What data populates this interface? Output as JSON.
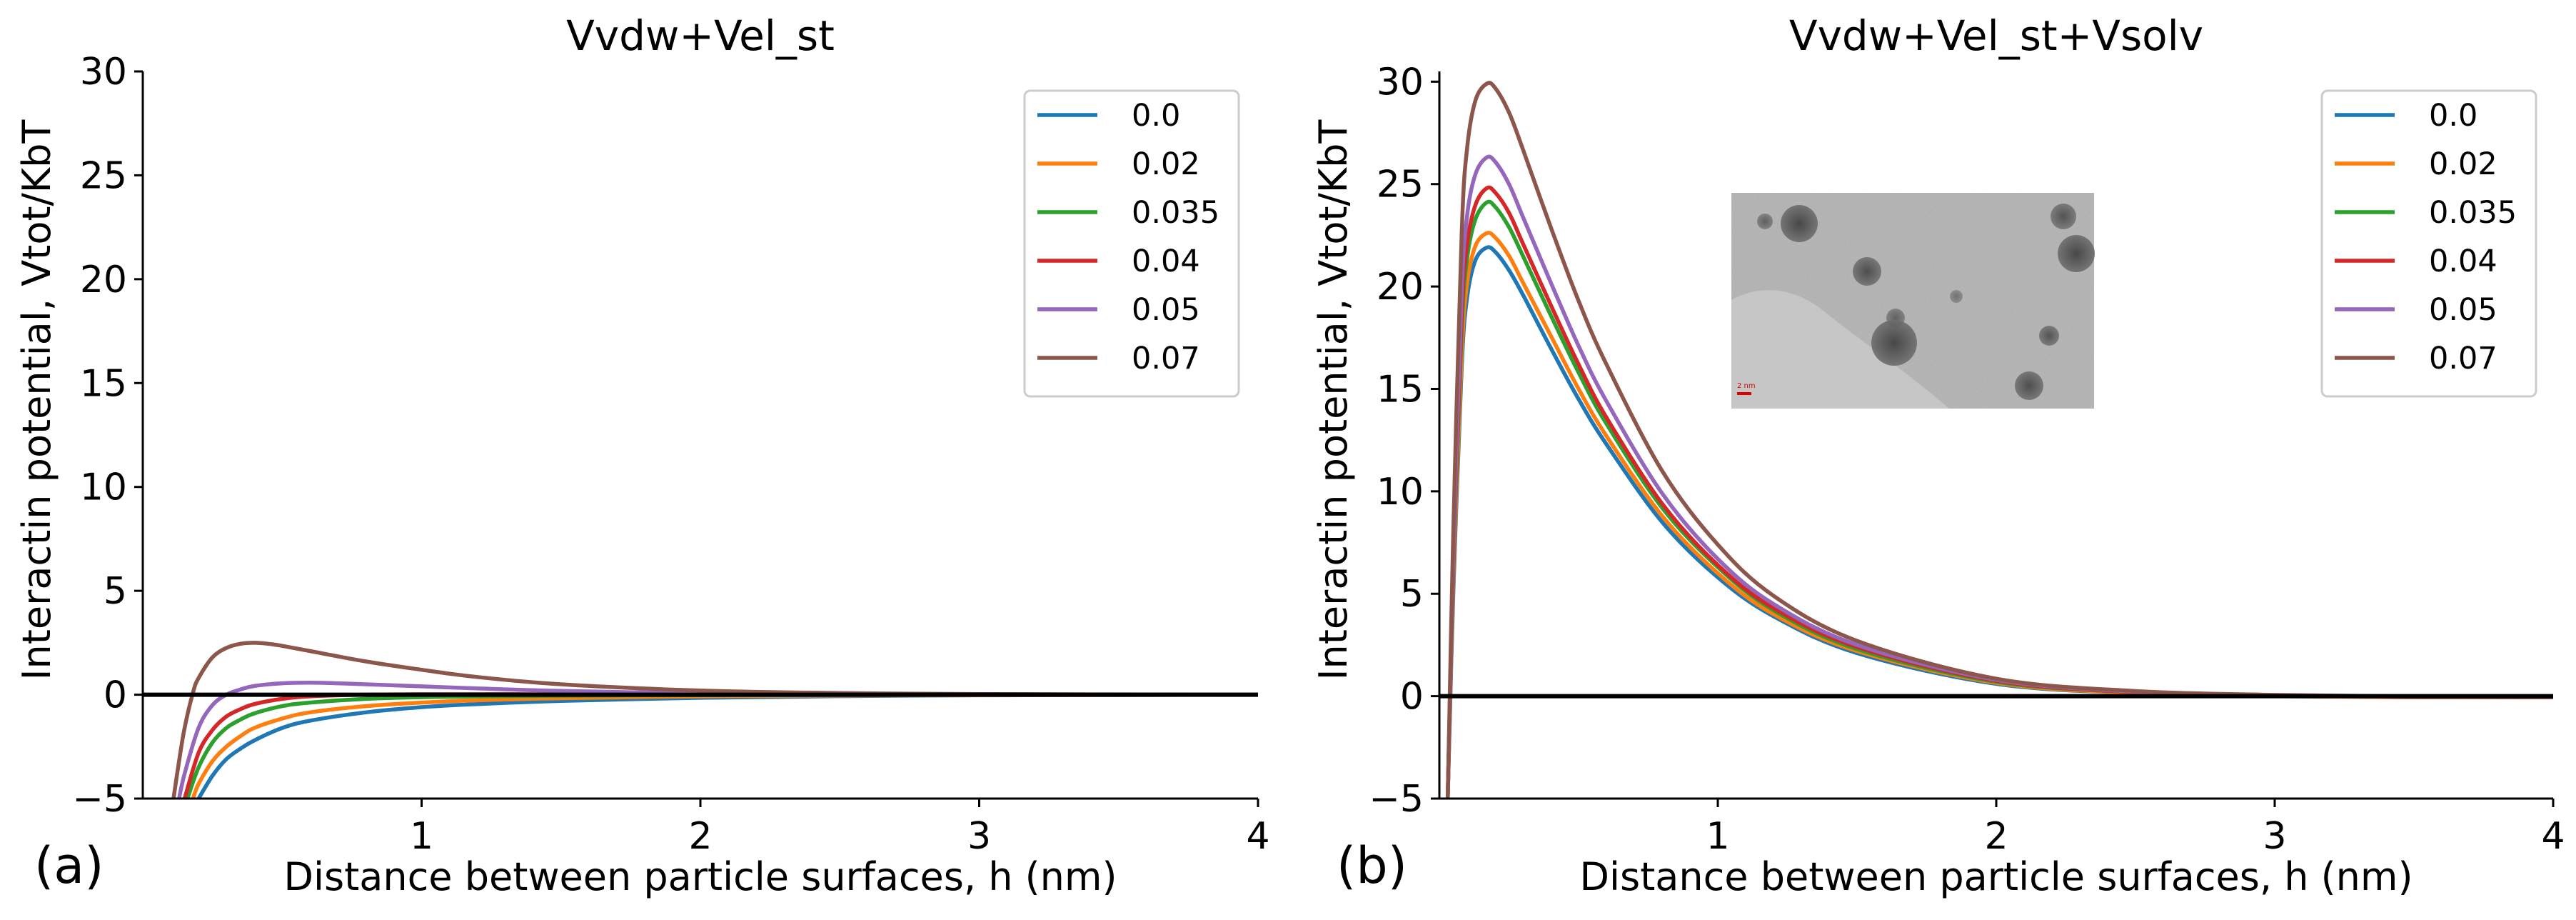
{
  "chart_data": [
    {
      "type": "line",
      "panel_label": "(a)",
      "title": "Vvdw+Vel_st",
      "xlabel": "Distance between particle surfaces, h (nm)",
      "ylabel": "Interactin potential, Vtot/KbT",
      "xlim": [
        0,
        4
      ],
      "ylim": [
        -5,
        30
      ],
      "xticks": [
        1,
        2,
        3,
        4
      ],
      "yticks": [
        -5,
        0,
        5,
        10,
        15,
        20,
        25,
        30
      ],
      "legend_position": "top-right",
      "inset": false,
      "series": [
        {
          "name": "0.0",
          "color": "#1f77b4",
          "x": [
            0.2,
            0.25,
            0.3,
            0.35,
            0.4,
            0.5,
            0.6,
            0.8,
            1.0,
            1.2,
            1.5,
            2.0,
            2.5,
            3.0,
            4.0
          ],
          "values": [
            -5.0,
            -3.9,
            -3.1,
            -2.6,
            -2.2,
            -1.6,
            -1.25,
            -0.85,
            -0.6,
            -0.45,
            -0.3,
            -0.15,
            -0.07,
            -0.03,
            0.0
          ]
        },
        {
          "name": "0.02",
          "color": "#ff7f0e",
          "x": [
            0.18,
            0.2,
            0.25,
            0.3,
            0.35,
            0.4,
            0.5,
            0.6,
            0.8,
            1.0,
            1.2,
            1.5,
            2.0,
            2.5,
            3.0,
            4.0
          ],
          "values": [
            -5.0,
            -4.3,
            -3.2,
            -2.5,
            -2.0,
            -1.6,
            -1.15,
            -0.85,
            -0.55,
            -0.38,
            -0.27,
            -0.17,
            -0.08,
            -0.04,
            -0.02,
            0.0
          ]
        },
        {
          "name": "0.035",
          "color": "#2ca02c",
          "x": [
            0.16,
            0.2,
            0.25,
            0.3,
            0.35,
            0.4,
            0.5,
            0.6,
            0.8,
            1.0,
            1.2,
            1.5,
            2.0,
            2.5,
            4.0
          ],
          "values": [
            -5.0,
            -3.5,
            -2.3,
            -1.6,
            -1.2,
            -0.9,
            -0.55,
            -0.38,
            -0.2,
            -0.12,
            -0.08,
            -0.05,
            -0.02,
            -0.01,
            0.0
          ]
        },
        {
          "name": "0.04",
          "color": "#d62728",
          "x": [
            0.15,
            0.2,
            0.25,
            0.3,
            0.35,
            0.4,
            0.5,
            0.6,
            0.8,
            1.0,
            1.5,
            2.0,
            4.0
          ],
          "values": [
            -5.0,
            -2.8,
            -1.7,
            -1.05,
            -0.7,
            -0.45,
            -0.2,
            -0.08,
            0.0,
            0.02,
            0.02,
            0.01,
            0.0
          ]
        },
        {
          "name": "0.05",
          "color": "#9467bd",
          "x": [
            0.13,
            0.15,
            0.2,
            0.25,
            0.3,
            0.35,
            0.4,
            0.5,
            0.6,
            0.7,
            0.8,
            1.0,
            1.2,
            1.5,
            2.0,
            2.5,
            3.0,
            4.0
          ],
          "values": [
            -5.0,
            -3.8,
            -1.6,
            -0.5,
            0.0,
            0.25,
            0.42,
            0.55,
            0.58,
            0.55,
            0.5,
            0.4,
            0.3,
            0.18,
            0.07,
            0.03,
            0.01,
            0.0
          ]
        },
        {
          "name": "0.07",
          "color": "#8c564b",
          "x": [
            0.11,
            0.13,
            0.15,
            0.18,
            0.2,
            0.25,
            0.3,
            0.35,
            0.4,
            0.45,
            0.5,
            0.6,
            0.8,
            1.0,
            1.2,
            1.5,
            2.0,
            2.5,
            3.0,
            4.0
          ],
          "values": [
            -5.0,
            -3.2,
            -1.6,
            0.1,
            0.8,
            1.8,
            2.25,
            2.45,
            2.5,
            2.45,
            2.35,
            2.1,
            1.6,
            1.2,
            0.85,
            0.5,
            0.2,
            0.08,
            0.03,
            0.0
          ]
        },
        {
          "name": "zero-line",
          "color": "#000000",
          "x": [
            0,
            4
          ],
          "values": [
            0,
            0
          ]
        }
      ]
    },
    {
      "type": "line",
      "panel_label": "(b)",
      "title": "Vvdw+Vel_st+Vsolv",
      "xlabel": "Distance between particle surfaces, h (nm)",
      "ylabel": "Interactin potential, Vtot/KbT",
      "xlim": [
        0,
        4
      ],
      "ylim": [
        -5,
        30.5
      ],
      "xticks": [
        1,
        2,
        3,
        4
      ],
      "yticks": [
        -5,
        0,
        5,
        10,
        15,
        20,
        25,
        30
      ],
      "legend_position": "top-right",
      "inset": true,
      "inset_scale_text": "2 nm",
      "series": [
        {
          "name": "0.0",
          "color": "#1f77b4",
          "x": [
            0.03,
            0.05,
            0.08,
            0.1,
            0.13,
            0.17,
            0.2,
            0.25,
            0.3,
            0.4,
            0.5,
            0.6,
            0.8,
            1.0,
            1.2,
            1.5,
            2.0,
            2.5,
            3.0,
            3.5,
            4.0
          ],
          "values": [
            -5.0,
            5.0,
            16.0,
            19.5,
            21.3,
            21.9,
            21.7,
            20.8,
            19.6,
            17.0,
            14.5,
            12.3,
            8.5,
            5.8,
            3.9,
            2.1,
            0.6,
            0.15,
            0.0,
            -0.05,
            -0.05
          ]
        },
        {
          "name": "0.02",
          "color": "#ff7f0e",
          "x": [
            0.03,
            0.05,
            0.08,
            0.1,
            0.13,
            0.17,
            0.2,
            0.25,
            0.3,
            0.4,
            0.5,
            0.6,
            0.8,
            1.0,
            1.2,
            1.5,
            2.0,
            2.5,
            3.0,
            3.5,
            4.0
          ],
          "values": [
            -5.0,
            5.5,
            16.6,
            20.2,
            22.0,
            22.6,
            22.4,
            21.5,
            20.2,
            17.6,
            15.0,
            12.7,
            8.8,
            6.0,
            4.0,
            2.2,
            0.65,
            0.15,
            0.0,
            -0.05,
            -0.05
          ]
        },
        {
          "name": "0.035",
          "color": "#2ca02c",
          "x": [
            0.03,
            0.05,
            0.08,
            0.1,
            0.13,
            0.17,
            0.2,
            0.25,
            0.3,
            0.4,
            0.5,
            0.6,
            0.8,
            1.0,
            1.2,
            1.5,
            2.0,
            2.5,
            3.0,
            3.5,
            4.0
          ],
          "values": [
            -5.0,
            6.0,
            17.8,
            21.4,
            23.3,
            24.1,
            23.9,
            22.9,
            21.5,
            18.6,
            15.8,
            13.3,
            9.2,
            6.3,
            4.2,
            2.3,
            0.7,
            0.2,
            0.03,
            -0.03,
            -0.05
          ]
        },
        {
          "name": "0.04",
          "color": "#d62728",
          "x": [
            0.03,
            0.05,
            0.08,
            0.1,
            0.13,
            0.17,
            0.2,
            0.25,
            0.3,
            0.4,
            0.5,
            0.6,
            0.8,
            1.0,
            1.2,
            1.5,
            2.0,
            2.5,
            3.0,
            3.5,
            4.0
          ],
          "values": [
            -5.0,
            6.3,
            18.5,
            22.1,
            24.0,
            24.8,
            24.6,
            23.6,
            22.1,
            19.1,
            16.2,
            13.6,
            9.4,
            6.4,
            4.3,
            2.4,
            0.75,
            0.2,
            0.04,
            -0.03,
            -0.05
          ]
        },
        {
          "name": "0.05",
          "color": "#9467bd",
          "x": [
            0.03,
            0.05,
            0.08,
            0.1,
            0.13,
            0.17,
            0.2,
            0.25,
            0.3,
            0.4,
            0.5,
            0.6,
            0.8,
            1.0,
            1.2,
            1.5,
            2.0,
            2.5,
            3.0,
            3.5,
            4.0
          ],
          "values": [
            -5.0,
            6.8,
            19.6,
            23.5,
            25.5,
            26.3,
            26.1,
            25.0,
            23.4,
            20.2,
            17.1,
            14.4,
            9.9,
            6.7,
            4.5,
            2.5,
            0.8,
            0.22,
            0.05,
            -0.02,
            -0.05
          ]
        },
        {
          "name": "0.07",
          "color": "#8c564b",
          "x": [
            0.03,
            0.05,
            0.08,
            0.1,
            0.13,
            0.17,
            0.2,
            0.25,
            0.3,
            0.4,
            0.5,
            0.6,
            0.8,
            1.0,
            1.2,
            1.5,
            2.0,
            2.5,
            3.0,
            3.5,
            4.0
          ],
          "values": [
            -5.0,
            8.0,
            22.5,
            26.8,
            29.1,
            29.9,
            29.7,
            28.5,
            26.7,
            22.9,
            19.3,
            16.2,
            11.0,
            7.4,
            4.9,
            2.7,
            0.85,
            0.25,
            0.06,
            -0.02,
            -0.05
          ]
        },
        {
          "name": "zero-line",
          "color": "#000000",
          "x": [
            0,
            4
          ],
          "values": [
            0,
            0
          ]
        }
      ]
    }
  ]
}
